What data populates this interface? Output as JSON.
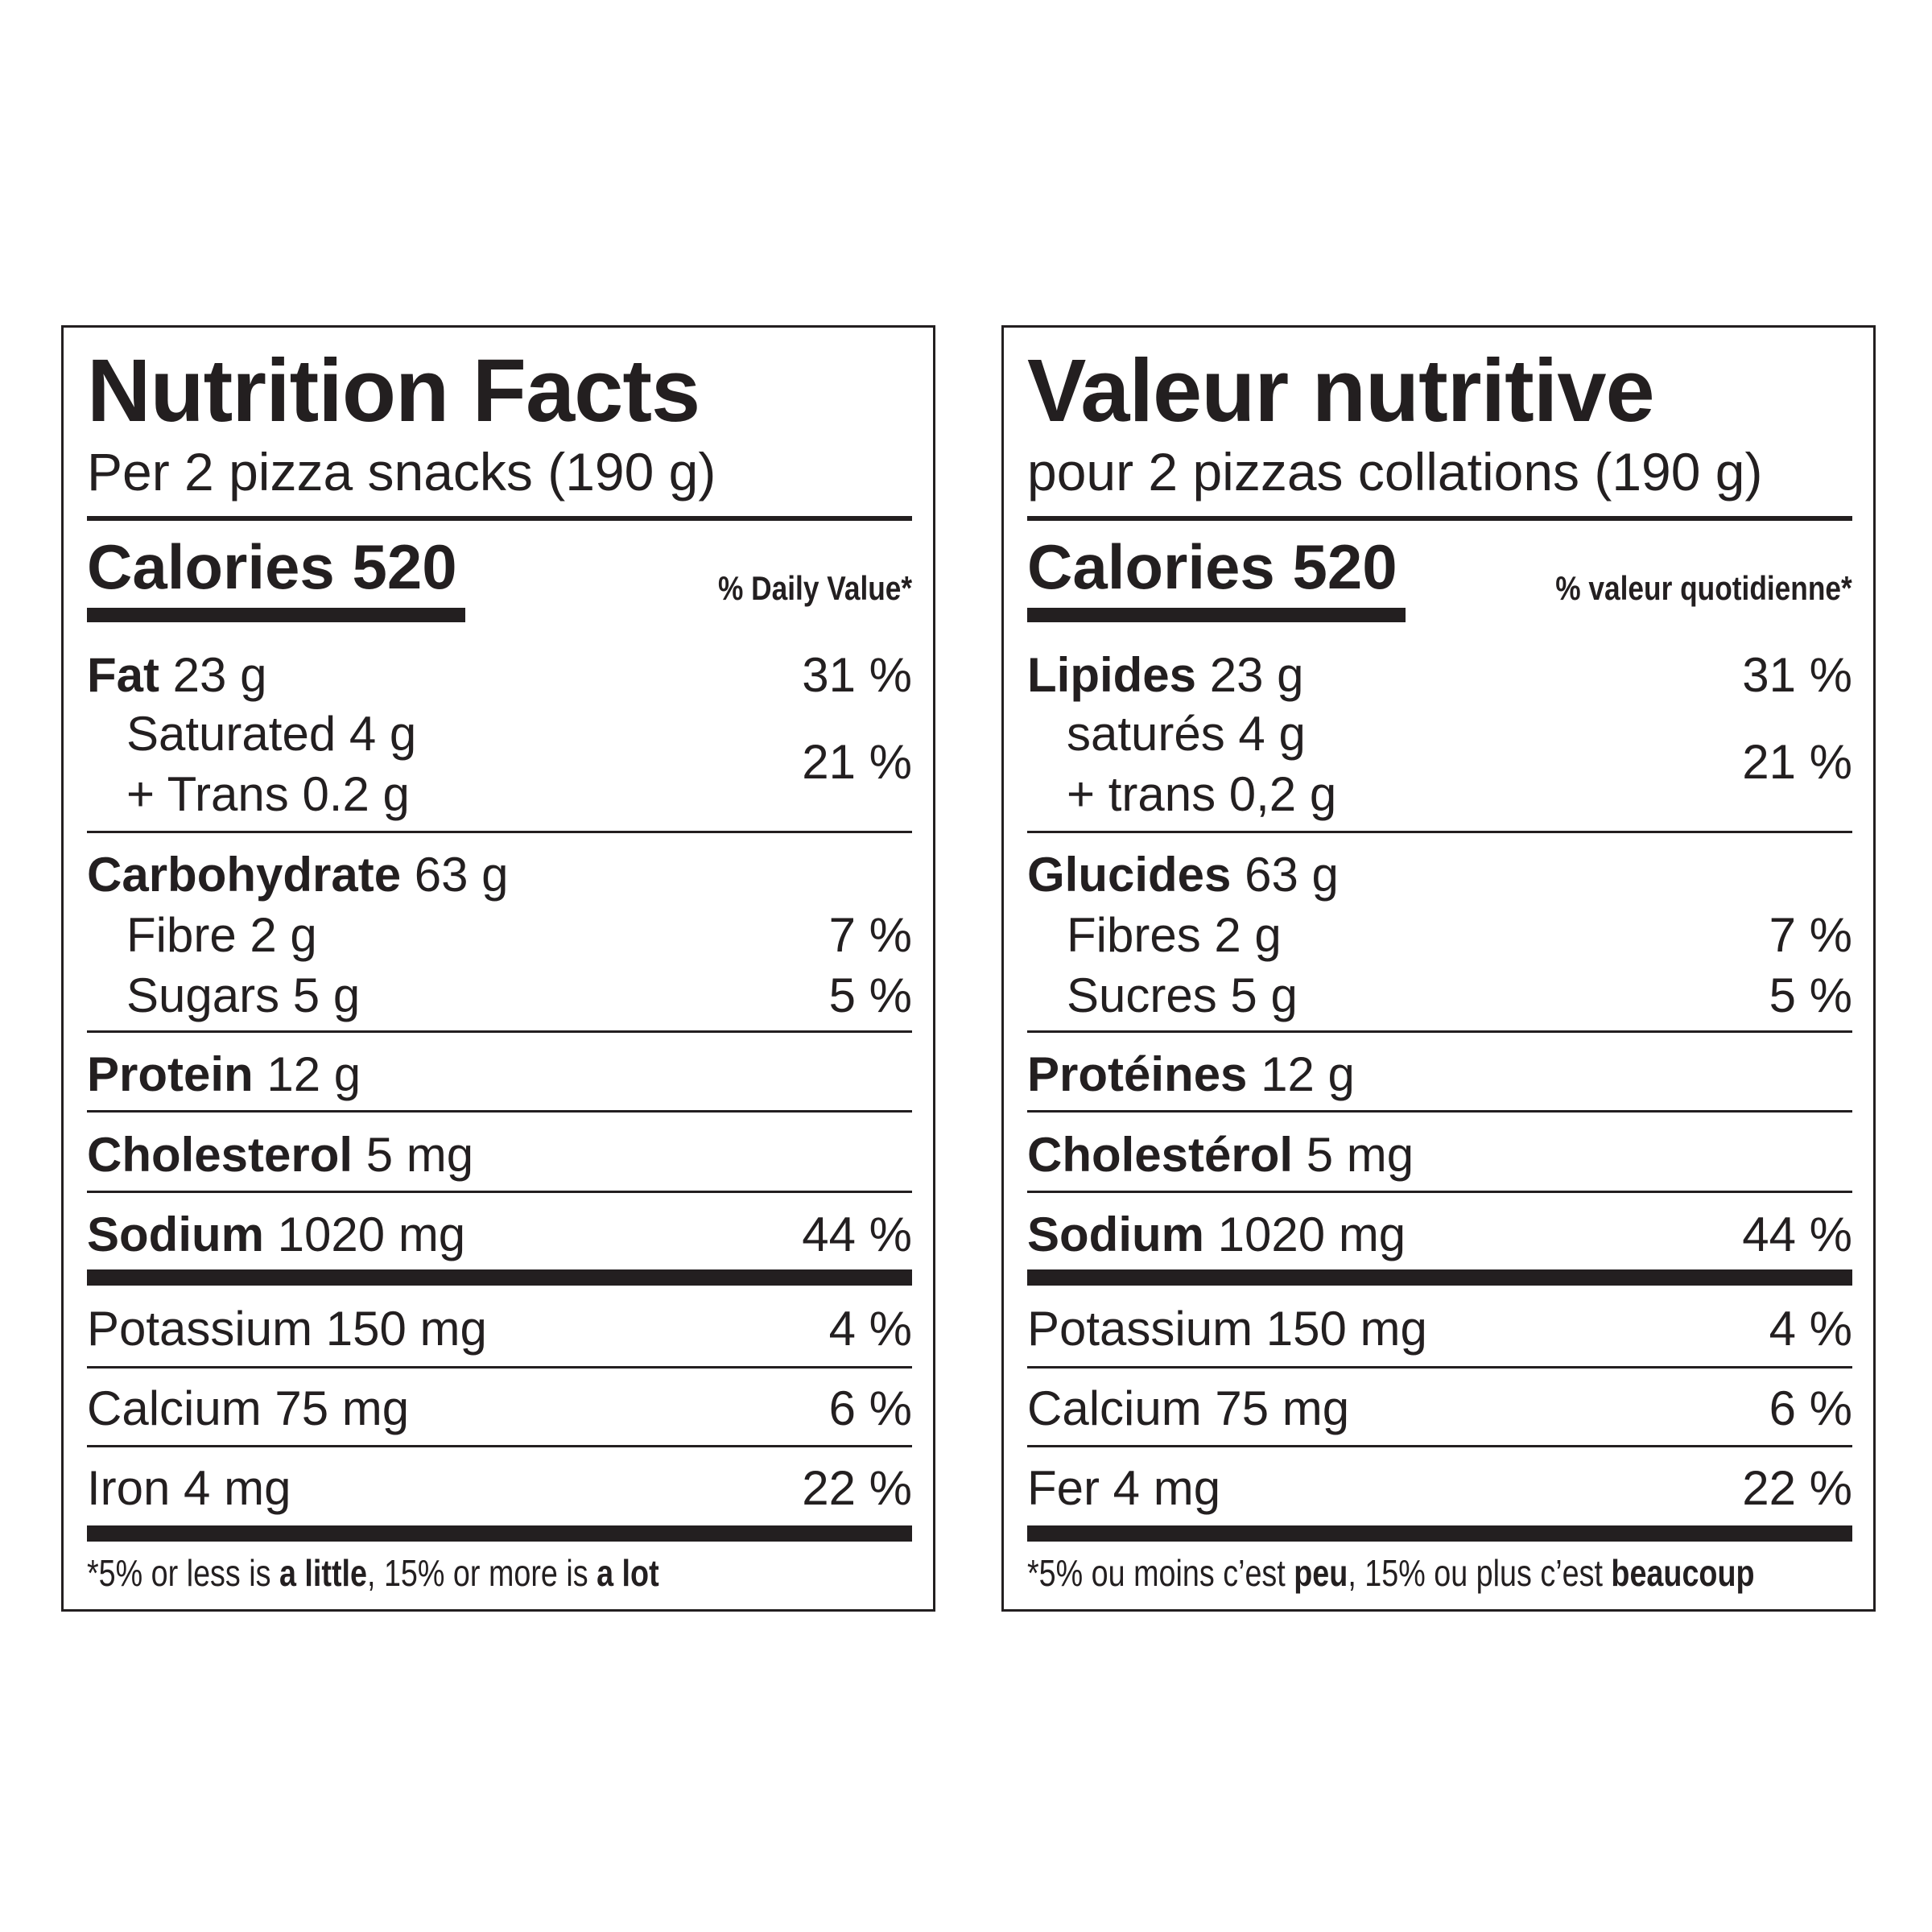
{
  "en": {
    "title": "Nutrition Facts",
    "serving": "Per 2 pizza snacks (190 g)",
    "calories": "Calories 520",
    "dv_header": "% Daily Value*",
    "fat_label": "Fat",
    "fat_amt": " 23 g",
    "fat_pct": "31 %",
    "sat": "Saturated 4 g",
    "trans": "+ Trans 0.2 g",
    "sat_trans_pct": "21 %",
    "carb_label": "Carbohydrate",
    "carb_amt": " 63 g",
    "fibre": "Fibre 2 g",
    "fibre_pct": "7 %",
    "sugars": "Sugars 5 g",
    "sugars_pct": "5 %",
    "protein_label": "Protein",
    "protein_amt": " 12 g",
    "chol_label": "Cholesterol",
    "chol_amt": " 5 mg",
    "sodium_label": "Sodium",
    "sodium_amt": " 1020 mg",
    "sodium_pct": "44 %",
    "potassium": "Potassium 150 mg",
    "potassium_pct": "4 %",
    "calcium": "Calcium 75 mg",
    "calcium_pct": "6 %",
    "iron": "Iron 4 mg",
    "iron_pct": "22 %",
    "foot_1": "*5% or less is ",
    "foot_2": "a little",
    "foot_3": ", 15% or more is ",
    "foot_4": "a lot"
  },
  "fr": {
    "title": "Valeur nutritive",
    "serving": "pour 2 pizzas collations (190 g)",
    "calories": "Calories 520",
    "dv_header": "% valeur quotidienne*",
    "fat_label": "Lipides",
    "fat_amt": " 23 g",
    "fat_pct": "31 %",
    "sat": "saturés 4 g",
    "trans": "+ trans 0,2 g",
    "sat_trans_pct": "21 %",
    "carb_label": "Glucides",
    "carb_amt": " 63 g",
    "fibre": "Fibres 2 g",
    "fibre_pct": "7 %",
    "sugars": "Sucres 5 g",
    "sugars_pct": "5 %",
    "protein_label": "Protéines",
    "protein_amt": " 12 g",
    "chol_label": "Cholestérol",
    "chol_amt": " 5 mg",
    "sodium_label": "Sodium",
    "sodium_amt": " 1020 mg",
    "sodium_pct": "44 %",
    "potassium": "Potassium 150 mg",
    "potassium_pct": "4 %",
    "calcium": "Calcium 75 mg",
    "calcium_pct": "6 %",
    "iron": "Fer 4 mg",
    "iron_pct": "22 %",
    "foot_1": "*5% ou moins c’est ",
    "foot_2": "peu",
    "foot_3": ", 15% ou plus c’est ",
    "foot_4": "beaucoup"
  }
}
